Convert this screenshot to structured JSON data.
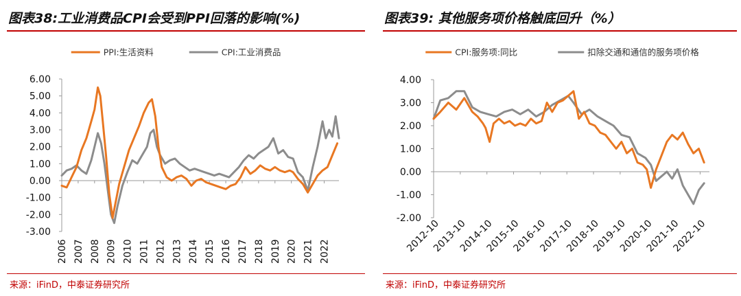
{
  "charts": [
    {
      "title": "图表38:工业消费品CPI会受到PPI回落的影响(%)",
      "source": "来源：iFinD，中泰证券研究所"
    },
    {
      "title": "图表39: 其他服务项价格触底回升（%）",
      "source": "来源：iFinD，中泰证券研究所"
    }
  ],
  "chart_data": [
    {
      "type": "line",
      "title": "图表38:工业消费品CPI会受到PPI回落的影响(%)",
      "xlabel": "",
      "ylabel": "",
      "xlim": [
        2006.0,
        2022.9
      ],
      "ylim": [
        -3.0,
        6.0
      ],
      "yticks": [
        "6.00",
        "5.00",
        "4.00",
        "3.00",
        "2.00",
        "1.00",
        "0.00",
        "-1.00",
        "-2.00",
        "-3.00"
      ],
      "xticks": [
        "2006",
        "2007",
        "2008",
        "2009",
        "2010",
        "2011",
        "2012",
        "2013",
        "2014",
        "2015",
        "2016",
        "2017",
        "2018",
        "2019",
        "2020",
        "2021",
        "2022"
      ],
      "legend_position": "top",
      "series": [
        {
          "name": "PPI:生活资料",
          "color": "#e87722",
          "x": [
            2006.0,
            2006.3,
            2006.6,
            2006.9,
            2007.2,
            2007.5,
            2007.8,
            2008.0,
            2008.2,
            2008.35,
            2008.5,
            2008.7,
            2008.9,
            2009.1,
            2009.3,
            2009.5,
            2009.8,
            2010.1,
            2010.4,
            2010.7,
            2011.0,
            2011.3,
            2011.5,
            2011.7,
            2011.9,
            2012.1,
            2012.4,
            2012.7,
            2013.0,
            2013.3,
            2013.6,
            2013.9,
            2014.2,
            2014.5,
            2014.8,
            2015.1,
            2015.4,
            2015.7,
            2016.0,
            2016.3,
            2016.6,
            2016.9,
            2017.2,
            2017.5,
            2017.8,
            2018.1,
            2018.4,
            2018.7,
            2019.0,
            2019.3,
            2019.6,
            2019.9,
            2020.1,
            2020.4,
            2020.7,
            2021.0,
            2021.3,
            2021.6,
            2021.9,
            2022.2,
            2022.5,
            2022.8
          ],
          "values": [
            -0.3,
            -0.4,
            0.2,
            0.8,
            1.8,
            2.5,
            3.5,
            4.2,
            5.5,
            5.0,
            3.5,
            1.5,
            -0.8,
            -2.2,
            -1.2,
            -0.2,
            0.8,
            1.8,
            2.5,
            3.2,
            4.0,
            4.6,
            4.8,
            3.8,
            2.0,
            0.8,
            0.2,
            0.0,
            0.2,
            0.3,
            0.1,
            -0.3,
            0.0,
            0.1,
            -0.1,
            -0.2,
            -0.3,
            -0.4,
            -0.5,
            -0.3,
            -0.2,
            0.2,
            0.8,
            0.4,
            0.6,
            0.9,
            0.7,
            0.6,
            0.8,
            0.6,
            0.5,
            0.6,
            0.5,
            0.1,
            -0.2,
            -0.7,
            -0.2,
            0.3,
            0.6,
            0.8,
            1.5,
            2.2
          ]
        },
        {
          "name": "CPI:工业消费品",
          "color": "#8c8c8c",
          "x": [
            2006.0,
            2006.3,
            2006.6,
            2006.9,
            2007.2,
            2007.5,
            2007.8,
            2008.0,
            2008.2,
            2008.4,
            2008.6,
            2008.8,
            2009.0,
            2009.2,
            2009.4,
            2009.7,
            2010.0,
            2010.3,
            2010.6,
            2010.9,
            2011.2,
            2011.4,
            2011.6,
            2011.8,
            2012.0,
            2012.3,
            2012.6,
            2012.9,
            2013.2,
            2013.5,
            2013.8,
            2014.1,
            2014.4,
            2014.7,
            2015.0,
            2015.3,
            2015.6,
            2015.9,
            2016.2,
            2016.5,
            2016.8,
            2017.1,
            2017.4,
            2017.7,
            2018.0,
            2018.3,
            2018.6,
            2018.9,
            2019.2,
            2019.5,
            2019.8,
            2020.1,
            2020.4,
            2020.7,
            2021.0,
            2021.3,
            2021.6,
            2021.9,
            2022.1,
            2022.3,
            2022.5,
            2022.7,
            2022.9
          ],
          "values": [
            0.3,
            0.6,
            0.7,
            0.9,
            0.6,
            0.4,
            1.2,
            2.0,
            2.8,
            2.2,
            1.0,
            -0.5,
            -2.0,
            -2.5,
            -1.5,
            -0.3,
            0.5,
            1.2,
            1.0,
            1.5,
            2.0,
            2.8,
            3.0,
            2.0,
            1.5,
            1.0,
            1.2,
            1.3,
            1.0,
            0.8,
            0.6,
            0.7,
            0.6,
            0.5,
            0.4,
            0.3,
            0.4,
            0.3,
            0.2,
            0.5,
            0.8,
            1.2,
            1.5,
            1.3,
            1.6,
            1.8,
            2.0,
            2.5,
            1.6,
            1.8,
            1.4,
            1.3,
            0.5,
            0.2,
            -0.6,
            0.8,
            2.0,
            3.5,
            2.5,
            3.0,
            2.6,
            3.8,
            2.5
          ]
        }
      ]
    },
    {
      "type": "line",
      "title": "图表39: 其他服务项价格触底回升（%）",
      "xlabel": "",
      "ylabel": "",
      "xlim": [
        2012.75,
        2023.1
      ],
      "ylim": [
        -2.0,
        4.0
      ],
      "yticks": [
        "4.00",
        "3.00",
        "2.00",
        "1.00",
        "0.00",
        "-1.00",
        "-2.00"
      ],
      "xticks": [
        "2012-10",
        "2013-10",
        "2014-10",
        "2015-10",
        "2016-10",
        "2017-10",
        "2018-10",
        "2019-10",
        "2020-10",
        "2021-10",
        "2022-10"
      ],
      "legend_position": "top",
      "series": [
        {
          "name": "CPI:服务项:同比",
          "color": "#e87722",
          "x": [
            2012.75,
            2013.0,
            2013.3,
            2013.6,
            2013.9,
            2014.2,
            2014.4,
            2014.6,
            2014.7,
            2014.85,
            2015.0,
            2015.2,
            2015.4,
            2015.6,
            2015.8,
            2016.0,
            2016.2,
            2016.4,
            2016.6,
            2016.8,
            2017.0,
            2017.2,
            2017.4,
            2017.6,
            2017.8,
            2018.0,
            2018.2,
            2018.4,
            2018.6,
            2018.8,
            2019.0,
            2019.2,
            2019.4,
            2019.6,
            2019.8,
            2020.0,
            2020.2,
            2020.4,
            2020.6,
            2020.75,
            2020.9,
            2021.1,
            2021.3,
            2021.5,
            2021.7,
            2021.9,
            2022.1,
            2022.3,
            2022.5,
            2022.7,
            2022.9
          ],
          "values": [
            2.3,
            2.6,
            3.0,
            2.7,
            3.2,
            2.6,
            2.4,
            2.1,
            1.9,
            1.3,
            2.1,
            2.3,
            2.1,
            2.2,
            2.0,
            2.1,
            2.0,
            2.3,
            2.1,
            2.2,
            3.0,
            2.6,
            3.0,
            3.1,
            3.3,
            3.5,
            2.3,
            2.6,
            2.1,
            2.0,
            1.7,
            1.6,
            1.3,
            1.0,
            1.3,
            0.8,
            1.0,
            0.4,
            0.3,
            0.1,
            -0.7,
            0.1,
            0.7,
            1.3,
            1.6,
            1.4,
            1.7,
            1.2,
            0.8,
            1.0,
            0.4
          ]
        },
        {
          "name": "扣除交通和通信的服务项价格",
          "color": "#8c8c8c",
          "x": [
            2012.75,
            2013.0,
            2013.3,
            2013.6,
            2013.9,
            2014.2,
            2014.5,
            2014.8,
            2015.1,
            2015.4,
            2015.7,
            2016.0,
            2016.3,
            2016.6,
            2016.9,
            2017.2,
            2017.5,
            2017.8,
            2018.0,
            2018.3,
            2018.6,
            2018.9,
            2019.2,
            2019.5,
            2019.8,
            2020.1,
            2020.4,
            2020.7,
            2020.9,
            2021.1,
            2021.3,
            2021.5,
            2021.7,
            2021.9,
            2022.1,
            2022.3,
            2022.5,
            2022.7,
            2022.9
          ],
          "values": [
            2.3,
            3.1,
            3.2,
            3.5,
            3.5,
            2.8,
            2.6,
            2.5,
            2.4,
            2.6,
            2.7,
            2.5,
            2.7,
            2.4,
            2.6,
            2.9,
            3.1,
            3.3,
            3.0,
            2.5,
            2.7,
            2.4,
            2.2,
            2.0,
            1.6,
            1.5,
            0.8,
            0.6,
            0.3,
            -0.4,
            -0.2,
            0.0,
            -0.3,
            0.1,
            -0.6,
            -1.0,
            -1.4,
            -0.8,
            -0.5
          ]
        }
      ]
    }
  ]
}
